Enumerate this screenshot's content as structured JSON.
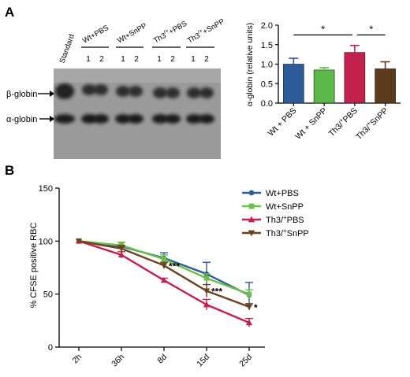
{
  "panels": {
    "a_label": "A",
    "b_label": "B"
  },
  "gel": {
    "standard_label": "Standard",
    "groups": [
      {
        "label": "Wt+PBS",
        "lanes": [
          "1",
          "2"
        ]
      },
      {
        "label": "Wt+SnPP",
        "lanes": [
          "1",
          "2"
        ]
      },
      {
        "label": "Th3/+PBS",
        "lanes": [
          "1",
          "2"
        ]
      },
      {
        "label": "Th3/+SnPP",
        "lanes": [
          "1",
          "2"
        ]
      }
    ],
    "band_labels": [
      "β-globin",
      "α-globin"
    ]
  },
  "chart_data": [
    {
      "type": "bar",
      "panel": "A",
      "ylabel": "α-globin (relative units)",
      "categories": [
        "Wt + PBS",
        "Wt + SnPP",
        "Th3/+PBS",
        "Th3/+SnPP"
      ],
      "values": [
        1.0,
        0.85,
        1.3,
        0.88
      ],
      "errors": [
        0.15,
        0.06,
        0.18,
        0.18
      ],
      "colors": [
        "#2e5b9a",
        "#5cb848",
        "#c3204d",
        "#5c3a1e"
      ],
      "ylim": [
        0,
        2.0
      ],
      "yticks": [
        "0.0",
        "0.5",
        "1.0",
        "1.5",
        "2.0"
      ],
      "significance": [
        {
          "from": 0,
          "to": 2,
          "label": "*"
        },
        {
          "from": 2,
          "to": 3,
          "label": "*"
        }
      ]
    },
    {
      "type": "line",
      "panel": "B",
      "ylabel": "% CFSE positive RBC",
      "x": [
        "2h",
        "36h",
        "8d",
        "15d",
        "25d"
      ],
      "ylim": [
        0,
        150
      ],
      "yticks": [
        "0",
        "50",
        "100",
        "150"
      ],
      "legend_position": "top-right",
      "series": [
        {
          "name": "Wt+PBS",
          "color": "#2e5b9a",
          "marker": "circle",
          "values": [
            100,
            95,
            84,
            69,
            49
          ],
          "errors": [
            1,
            4,
            5,
            11,
            12
          ]
        },
        {
          "name": "Wt+SnPP",
          "color": "#6cbf4a",
          "marker": "square",
          "values": [
            100,
            96,
            83,
            65,
            50
          ],
          "errors": [
            1,
            3,
            4,
            4,
            4
          ]
        },
        {
          "name": "Th3/+PBS",
          "color": "#c3204d",
          "marker": "triangle-up",
          "values": [
            100,
            87,
            63,
            40,
            23
          ],
          "errors": [
            1,
            3,
            2,
            5,
            4
          ]
        },
        {
          "name": "Th3/+SnPP",
          "color": "#6b4320",
          "marker": "triangle-down",
          "values": [
            100,
            93,
            77,
            53,
            38
          ],
          "errors": [
            1,
            3,
            3,
            6,
            3
          ]
        }
      ],
      "annotations": [
        {
          "x_index": 2,
          "value": 77,
          "label": "***"
        },
        {
          "x_index": 3,
          "value": 53,
          "label": "***"
        },
        {
          "x_index": 4,
          "value": 38,
          "label": "*"
        }
      ]
    }
  ]
}
